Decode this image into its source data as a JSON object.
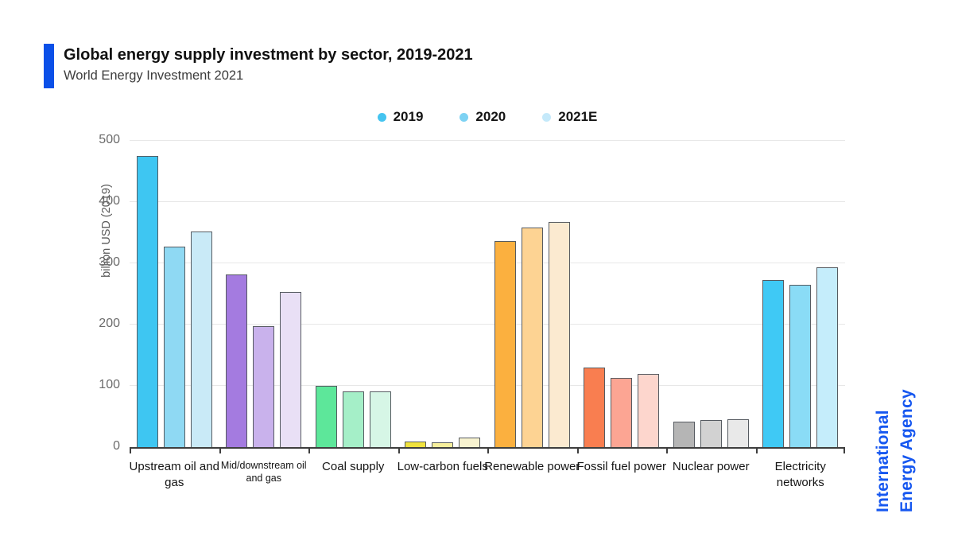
{
  "header": {
    "title": "Global energy supply investment by sector, 2019-2021",
    "subtitle": "World Energy Investment 2021",
    "accent_color": "#0b50e8"
  },
  "legend": [
    {
      "label": "2019",
      "color": "#45c4f0"
    },
    {
      "label": "2020",
      "color": "#7dd2f3"
    },
    {
      "label": "2021E",
      "color": "#c5e9fa"
    }
  ],
  "branding": {
    "line1": "International",
    "line2": "Energy Agency",
    "color": "#1657f0"
  },
  "chart_data": {
    "type": "bar",
    "title": "Global energy supply investment by sector, 2019-2021",
    "subtitle": "World Energy Investment 2021",
    "xlabel": "",
    "ylabel": "billion USD (2019)",
    "ylim": [
      0,
      500
    ],
    "yticks": [
      0,
      100,
      200,
      300,
      400,
      500
    ],
    "grid": true,
    "legend_position": "top-center",
    "series_names": [
      "2019",
      "2020",
      "2021E"
    ],
    "categories": [
      "Upstream oil and gas",
      "Mid/downstream oil and gas",
      "Coal supply",
      "Low-carbon fuels",
      "Renewable power",
      "Fossil fuel power",
      "Nuclear power",
      "Electricity networks"
    ],
    "series": [
      {
        "name": "2019",
        "values": [
          475,
          282,
          100,
          9,
          336,
          130,
          41,
          273
        ]
      },
      {
        "name": "2020",
        "values": [
          327,
          197,
          91,
          8,
          359,
          113,
          44,
          265
        ]
      },
      {
        "name": "2021E",
        "values": [
          352,
          253,
          91,
          15,
          367,
          120,
          45,
          294
        ]
      }
    ],
    "groups": [
      {
        "category": "Upstream oil and gas",
        "small_label": false,
        "values": [
          475,
          327,
          352
        ],
        "colors": [
          "#3ec6f2",
          "#8fd9f3",
          "#c9eaf7"
        ]
      },
      {
        "category": "Mid/downstream oil and gas",
        "small_label": true,
        "values": [
          282,
          197,
          253
        ],
        "colors": [
          "#a47be0",
          "#c9b2ec",
          "#e9e0f6"
        ]
      },
      {
        "category": "Coal supply",
        "small_label": false,
        "values": [
          100,
          91,
          91
        ],
        "colors": [
          "#5de79a",
          "#a5efc8",
          "#d6f6e6"
        ]
      },
      {
        "category": "Low-carbon fuels",
        "small_label": false,
        "values": [
          9,
          8,
          15
        ],
        "colors": [
          "#f0e23d",
          "#f7ef9c",
          "#f8f3d0"
        ]
      },
      {
        "category": "Renewable power",
        "small_label": false,
        "values": [
          336,
          359,
          367
        ],
        "colors": [
          "#fbb03f",
          "#fdd393",
          "#fbead0"
        ]
      },
      {
        "category": "Fossil fuel power",
        "small_label": false,
        "values": [
          130,
          113,
          120
        ],
        "colors": [
          "#f97e50",
          "#fca593",
          "#fdd6cd"
        ]
      },
      {
        "category": "Nuclear power",
        "small_label": false,
        "values": [
          41,
          44,
          45
        ],
        "colors": [
          "#b5b5b5",
          "#d2d2d2",
          "#e9e9e9"
        ]
      },
      {
        "category": "Electricity networks",
        "small_label": false,
        "values": [
          273,
          265,
          294
        ],
        "colors": [
          "#3fc9f5",
          "#8adcf6",
          "#c5edfb"
        ]
      }
    ],
    "bar_outline_color": "#565b61",
    "gridline_color": "#e7e7e7"
  }
}
